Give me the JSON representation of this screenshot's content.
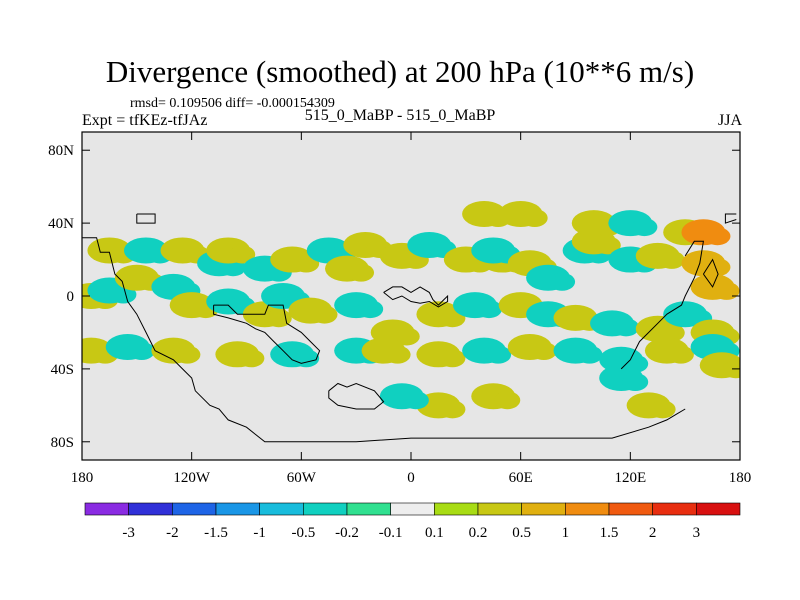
{
  "title": "Divergence (smoothed) at 200 hPa (10**6 m/s)",
  "stats": "rmsd= 0.109506 diff= -0.000154309",
  "expt": "Expt = tfKEz-tfJAz",
  "case": "515_0_MaBP - 515_0_MaBP",
  "season": "JJA",
  "chart_data": {
    "type": "heatmap",
    "title": "Divergence (smoothed) at 200 hPa (10**6 m/s)",
    "subtitle": "515_0_MaBP - 515_0_MaBP",
    "xlim": [
      -180,
      180
    ],
    "ylim": [
      -90,
      90
    ],
    "x_ticks": [
      {
        "label": "180",
        "value": -180
      },
      {
        "label": "120W",
        "value": -120
      },
      {
        "label": "60W",
        "value": -60
      },
      {
        "label": "0",
        "value": 0
      },
      {
        "label": "60E",
        "value": 60
      },
      {
        "label": "120E",
        "value": 120
      },
      {
        "label": "180",
        "value": 180
      }
    ],
    "y_ticks": [
      {
        "label": "80N",
        "value": 80
      },
      {
        "label": "40N",
        "value": 40
      },
      {
        "label": "0",
        "value": 0
      },
      {
        "label": "40S",
        "value": -40
      },
      {
        "label": "80S",
        "value": -80
      }
    ],
    "colorbar": {
      "levels": [
        "-3",
        "-2",
        "-1.5",
        "-1",
        "-0.5",
        "-0.2",
        "-0.1",
        "0.1",
        "0.2",
        "0.5",
        "1",
        "1.5",
        "2",
        "3"
      ],
      "colors": [
        "#8a2be2",
        "#3030d8",
        "#1e64e6",
        "#1a96e6",
        "#18bcdc",
        "#10d0c0",
        "#30e090",
        "#eeeeee",
        "#a8dc14",
        "#c8c814",
        "#e0b010",
        "#f08c10",
        "#f05a10",
        "#e82e10",
        "#d81010"
      ]
    },
    "background_color": "#e6e6e6",
    "cells": [
      {
        "lon": -175,
        "lat": 0,
        "v": 0.25
      },
      {
        "lon": -165,
        "lat": 3,
        "v": -0.3
      },
      {
        "lon": -150,
        "lat": 10,
        "v": 0.3
      },
      {
        "lon": -165,
        "lat": 25,
        "v": 0.25
      },
      {
        "lon": -145,
        "lat": 25,
        "v": -0.25
      },
      {
        "lon": -125,
        "lat": 25,
        "v": 0.25
      },
      {
        "lon": -105,
        "lat": 18,
        "v": -0.25
      },
      {
        "lon": -100,
        "lat": 25,
        "v": 0.25
      },
      {
        "lon": -80,
        "lat": 15,
        "v": -0.25
      },
      {
        "lon": -65,
        "lat": 20,
        "v": 0.25
      },
      {
        "lon": -45,
        "lat": 25,
        "v": -0.3
      },
      {
        "lon": -35,
        "lat": 15,
        "v": 0.3
      },
      {
        "lon": -25,
        "lat": 28,
        "v": 0.35
      },
      {
        "lon": -5,
        "lat": 22,
        "v": 0.25
      },
      {
        "lon": 10,
        "lat": 28,
        "v": -0.25
      },
      {
        "lon": 30,
        "lat": 20,
        "v": 0.3
      },
      {
        "lon": 50,
        "lat": 20,
        "v": 0.25
      },
      {
        "lon": 45,
        "lat": 25,
        "v": -0.25
      },
      {
        "lon": 65,
        "lat": 18,
        "v": 0.25
      },
      {
        "lon": 75,
        "lat": 10,
        "v": -0.25
      },
      {
        "lon": 95,
        "lat": 25,
        "v": -0.3
      },
      {
        "lon": 100,
        "lat": 30,
        "v": 0.3
      },
      {
        "lon": 120,
        "lat": 20,
        "v": -0.25
      },
      {
        "lon": 135,
        "lat": 22,
        "v": 0.3
      },
      {
        "lon": 160,
        "lat": 18,
        "v": 0.8
      },
      {
        "lon": 165,
        "lat": 5,
        "v": 0.6
      },
      {
        "lon": 150,
        "lat": 35,
        "v": 0.25
      },
      {
        "lon": 160,
        "lat": 35,
        "v": 1.0
      },
      {
        "lon": 40,
        "lat": 45,
        "v": 0.25
      },
      {
        "lon": 60,
        "lat": 45,
        "v": 0.25
      },
      {
        "lon": 100,
        "lat": 40,
        "v": 0.25
      },
      {
        "lon": 120,
        "lat": 40,
        "v": -0.25
      },
      {
        "lon": -130,
        "lat": 5,
        "v": -0.25
      },
      {
        "lon": -120,
        "lat": -5,
        "v": 0.25
      },
      {
        "lon": -100,
        "lat": -3,
        "v": -0.25
      },
      {
        "lon": -80,
        "lat": -10,
        "v": 0.35
      },
      {
        "lon": -70,
        "lat": 0,
        "v": -0.25
      },
      {
        "lon": -55,
        "lat": -8,
        "v": 0.25
      },
      {
        "lon": -30,
        "lat": -5,
        "v": -0.3
      },
      {
        "lon": -10,
        "lat": -20,
        "v": 0.3
      },
      {
        "lon": 15,
        "lat": -10,
        "v": 0.25
      },
      {
        "lon": 35,
        "lat": -5,
        "v": -0.35
      },
      {
        "lon": 60,
        "lat": -5,
        "v": 0.25
      },
      {
        "lon": 75,
        "lat": -10,
        "v": -0.25
      },
      {
        "lon": 90,
        "lat": -12,
        "v": 0.25
      },
      {
        "lon": 110,
        "lat": -15,
        "v": -0.25
      },
      {
        "lon": 135,
        "lat": -18,
        "v": 0.3
      },
      {
        "lon": 150,
        "lat": -10,
        "v": -0.25
      },
      {
        "lon": 165,
        "lat": -20,
        "v": 0.35
      },
      {
        "lon": -175,
        "lat": -30,
        "v": 0.3
      },
      {
        "lon": -155,
        "lat": -28,
        "v": -0.25
      },
      {
        "lon": -130,
        "lat": -30,
        "v": 0.25
      },
      {
        "lon": -95,
        "lat": -32,
        "v": 0.25
      },
      {
        "lon": -65,
        "lat": -32,
        "v": -0.3
      },
      {
        "lon": -30,
        "lat": -30,
        "v": -0.35
      },
      {
        "lon": -15,
        "lat": -30,
        "v": 0.3
      },
      {
        "lon": 15,
        "lat": -32,
        "v": 0.3
      },
      {
        "lon": 40,
        "lat": -30,
        "v": -0.35
      },
      {
        "lon": 65,
        "lat": -28,
        "v": 0.25
      },
      {
        "lon": 90,
        "lat": -30,
        "v": -0.25
      },
      {
        "lon": 115,
        "lat": -35,
        "v": -0.25
      },
      {
        "lon": 140,
        "lat": -30,
        "v": 0.25
      },
      {
        "lon": 165,
        "lat": -28,
        "v": -0.25
      },
      {
        "lon": 170,
        "lat": -38,
        "v": 0.3
      },
      {
        "lon": 15,
        "lat": -60,
        "v": 0.3
      },
      {
        "lon": 45,
        "lat": -55,
        "v": 0.25
      },
      {
        "lon": -5,
        "lat": -55,
        "v": -0.25
      },
      {
        "lon": 130,
        "lat": -60,
        "v": 0.25
      },
      {
        "lon": 115,
        "lat": -45,
        "v": -0.25
      }
    ]
  }
}
